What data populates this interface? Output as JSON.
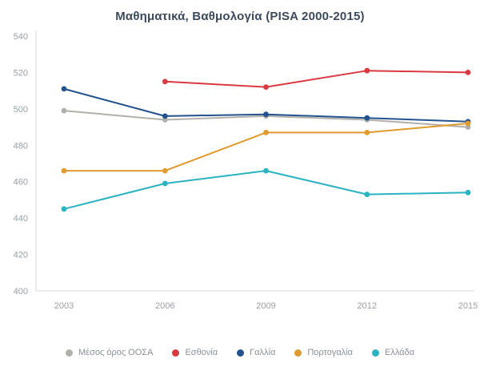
{
  "title": "Μαθηματικά, Βαθμολογία (PISA 2000-2015)",
  "colors": {
    "title_text": "#3c4a5b",
    "axis_line": "#d5d8dc",
    "tick_text": "#98a0a8"
  },
  "chart_data": {
    "type": "line",
    "title": "Μαθηματικά, Βαθμολογία (PISA 2000-2015)",
    "x": [
      2003,
      2006,
      2009,
      2012,
      2015
    ],
    "series": [
      {
        "id": "oecd-average",
        "name": "Μέσος όρος ΟΟΣΑ",
        "color": "#b2b0aa",
        "values": [
          499,
          494,
          496,
          494,
          490
        ]
      },
      {
        "id": "estonia",
        "name": "Εσθονία",
        "color": "#d93a41",
        "values": [
          null,
          515,
          512,
          521,
          520
        ]
      },
      {
        "id": "france",
        "name": "Γαλλία",
        "color": "#24528e",
        "values": [
          511,
          496,
          497,
          495,
          493
        ]
      },
      {
        "id": "portugal",
        "name": "Πορτογαλία",
        "color": "#df9b2d",
        "values": [
          466,
          466,
          487,
          487,
          492
        ]
      },
      {
        "id": "greece",
        "name": "Ελλάδα",
        "color": "#2ab3c1",
        "values": [
          445,
          459,
          466,
          453,
          454
        ]
      }
    ],
    "xlabel": "",
    "ylabel": "",
    "ylim": [
      400,
      540
    ],
    "ytick_step": 20,
    "grid": false,
    "legend_position": "bottom"
  }
}
